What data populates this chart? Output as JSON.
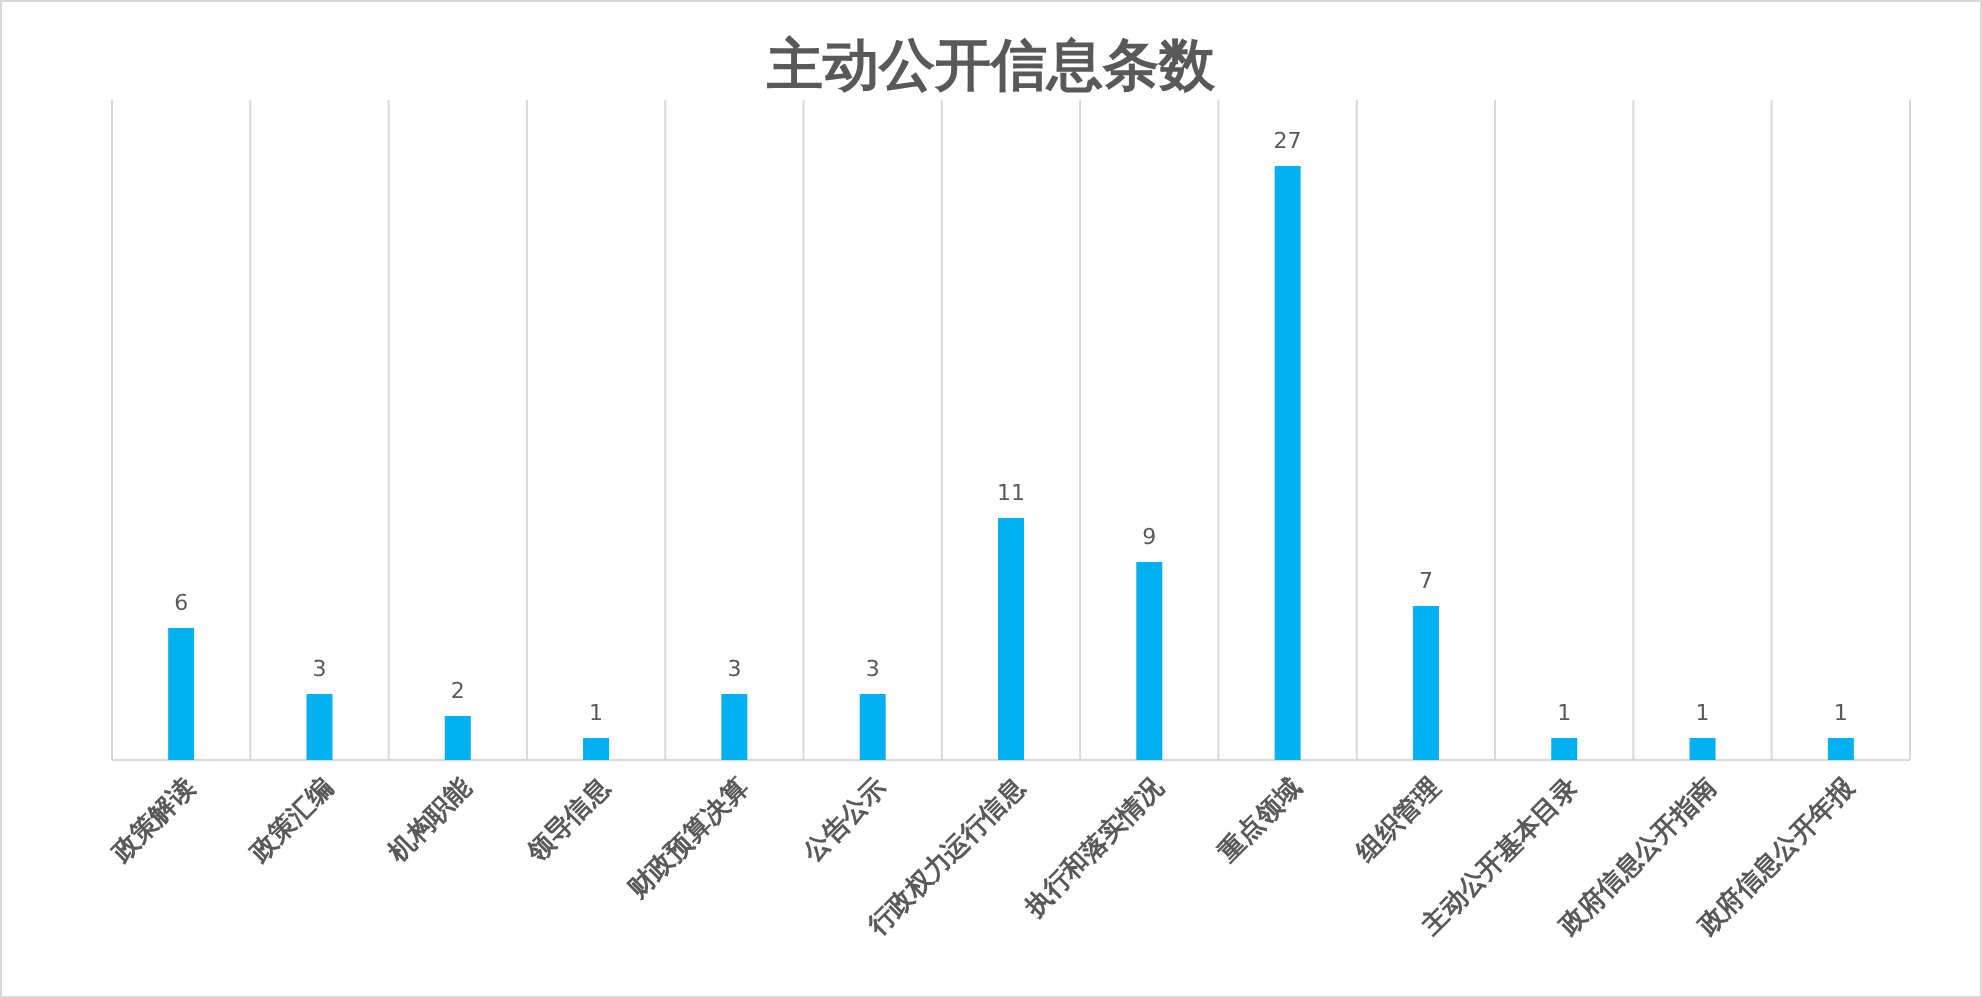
{
  "chart_data": {
    "type": "bar",
    "title": "主动公开信息条数",
    "categories": [
      "政策解读",
      "政策汇编",
      "机构职能",
      "领导信息",
      "财政预算决算",
      "公告公示",
      "行政权力运行信息",
      "执行和落实情况",
      "重点领域",
      "组织管理",
      "主动公开基本目录",
      "政府信息公开指南",
      "政府信息公开年报"
    ],
    "values": [
      6,
      3,
      2,
      1,
      3,
      3,
      11,
      9,
      27,
      7,
      1,
      1,
      1
    ],
    "color": "#00b0f0",
    "data_labels": true,
    "grid": "x"
  }
}
